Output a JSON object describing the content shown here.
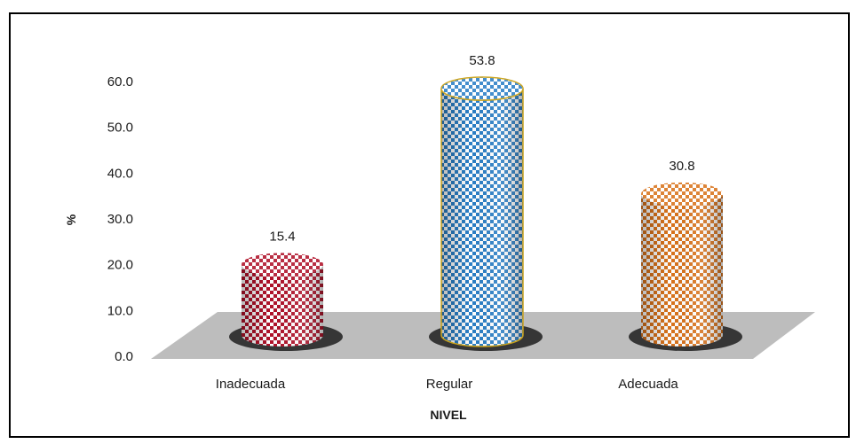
{
  "chart_data": {
    "type": "bar",
    "style": "3d-cylinder",
    "categories": [
      "Inadecuada",
      "Regular",
      "Adecuada"
    ],
    "values": [
      15.4,
      53.8,
      30.8
    ],
    "data_labels": [
      "15.4",
      "53.8",
      "30.8"
    ],
    "xlabel": "NIVEL",
    "ylabel": "%",
    "ylim": [
      0,
      60
    ],
    "yticks": [
      "0.0",
      "10.0",
      "20.0",
      "30.0",
      "40.0",
      "50.0",
      "60.0"
    ],
    "grid": false,
    "legend": "none",
    "colors": [
      "#b0122a",
      "#2b7fc6",
      "#d9731c"
    ],
    "floor_color": "#bdbdbd",
    "border_color": "#000000"
  }
}
